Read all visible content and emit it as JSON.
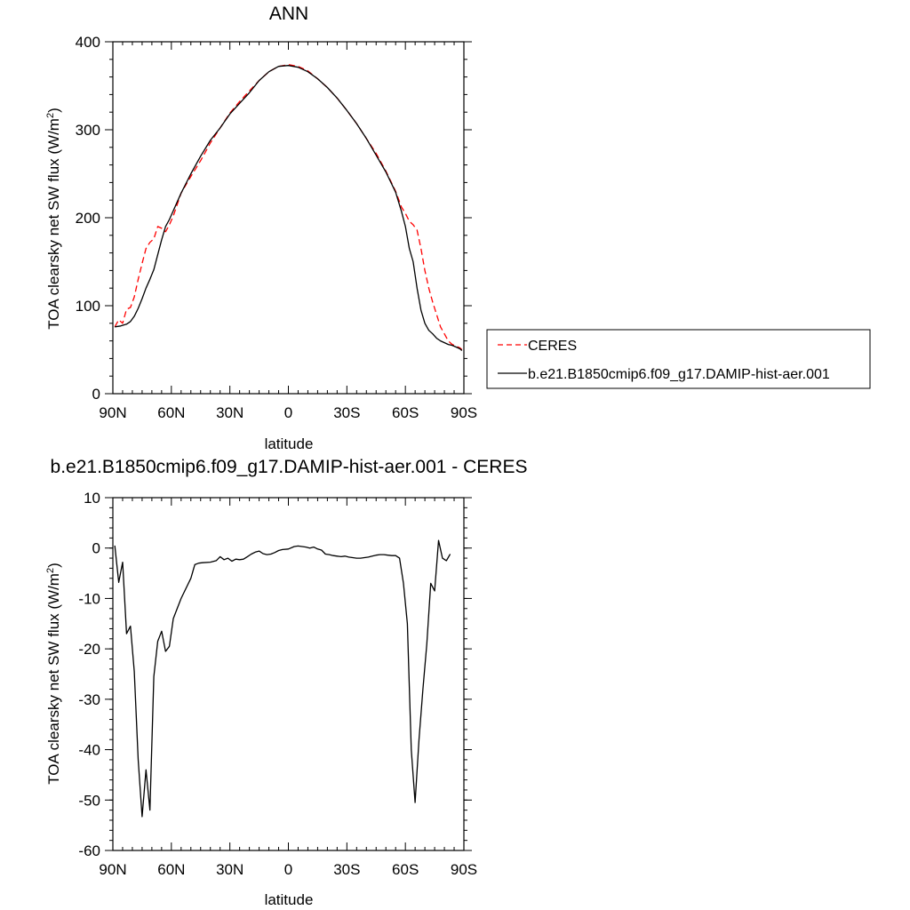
{
  "chart_data": [
    {
      "type": "line",
      "title": "ANN",
      "xlabel": "latitude",
      "ylabel": "TOA clearsky net SW flux (W/m",
      "ylabel_sup": "2",
      "ylabel_close": ")",
      "xlim": [
        90,
        -90
      ],
      "ylim": [
        0,
        400
      ],
      "x_ticks": [
        90,
        60,
        30,
        0,
        -30,
        -60,
        -90
      ],
      "x_tick_labels": [
        "90N",
        "60N",
        "30N",
        "0",
        "30S",
        "60S",
        "90S"
      ],
      "y_ticks": [
        0,
        100,
        200,
        300,
        400
      ],
      "y_tick_labels": [
        "0",
        "100",
        "200",
        "300",
        "400"
      ],
      "legend_placement": "right",
      "series": [
        {
          "name": "CERES",
          "color": "#ff0000",
          "dash": "dashed",
          "points": [
            [
              89,
              76
            ],
            [
              87,
              84
            ],
            [
              85,
              80
            ],
            [
              83,
              96
            ],
            [
              81,
              98
            ],
            [
              79,
              110
            ],
            [
              77,
              130
            ],
            [
              75,
              148
            ],
            [
              73,
              165
            ],
            [
              71,
              172
            ],
            [
              69,
              176
            ],
            [
              67,
              190
            ],
            [
              65,
              188
            ],
            [
              63,
              184
            ],
            [
              61,
              192
            ],
            [
              59,
              202
            ],
            [
              57,
              215
            ],
            [
              55,
              228
            ],
            [
              50,
              247
            ],
            [
              45,
              265
            ],
            [
              40,
              285
            ],
            [
              35,
              302
            ],
            [
              30,
              319
            ],
            [
              25,
              332
            ],
            [
              20,
              344
            ],
            [
              15,
              356
            ],
            [
              10,
              366
            ],
            [
              5,
              372
            ],
            [
              0,
              374
            ],
            [
              -5,
              372
            ],
            [
              -10,
              367
            ],
            [
              -15,
              358
            ],
            [
              -20,
              348
            ],
            [
              -25,
              336
            ],
            [
              -30,
              322
            ],
            [
              -35,
              307
            ],
            [
              -40,
              290
            ],
            [
              -45,
              273
            ],
            [
              -50,
              253
            ],
            [
              -55,
              230
            ],
            [
              -58,
              212
            ],
            [
              -60,
              205
            ],
            [
              -62,
              196
            ],
            [
              -64,
              192
            ],
            [
              -66,
              186
            ],
            [
              -68,
              165
            ],
            [
              -70,
              140
            ],
            [
              -72,
              120
            ],
            [
              -74,
              104
            ],
            [
              -76,
              90
            ],
            [
              -78,
              76
            ],
            [
              -80,
              68
            ],
            [
              -82,
              60
            ],
            [
              -84,
              56
            ],
            [
              -86,
              54
            ],
            [
              -88,
              52
            ],
            [
              -89,
              50
            ]
          ]
        },
        {
          "name": "b.e21.B1850cmip6.f09_g17.DAMIP-hist-aer.001",
          "color": "#000000",
          "dash": "solid",
          "points": [
            [
              89,
              76
            ],
            [
              86,
              77
            ],
            [
              83,
              79
            ],
            [
              81,
              82
            ],
            [
              79,
              88
            ],
            [
              77,
              97
            ],
            [
              75,
              108
            ],
            [
              73,
              120
            ],
            [
              71,
              130
            ],
            [
              69,
              141
            ],
            [
              67,
              158
            ],
            [
              65,
              175
            ],
            [
              63,
              190
            ],
            [
              61,
              198
            ],
            [
              59,
              208
            ],
            [
              57,
              218
            ],
            [
              55,
              228
            ],
            [
              50,
              250
            ],
            [
              45,
              270
            ],
            [
              40,
              288
            ],
            [
              35,
              302
            ],
            [
              30,
              318
            ],
            [
              25,
              330
            ],
            [
              20,
              342
            ],
            [
              15,
              356
            ],
            [
              10,
              366
            ],
            [
              5,
              372
            ],
            [
              0,
              373
            ],
            [
              -5,
              371
            ],
            [
              -10,
              366
            ],
            [
              -15,
              358
            ],
            [
              -20,
              348
            ],
            [
              -25,
              336
            ],
            [
              -30,
              322
            ],
            [
              -35,
              307
            ],
            [
              -40,
              290
            ],
            [
              -45,
              271
            ],
            [
              -50,
              252
            ],
            [
              -55,
              229
            ],
            [
              -58,
              207
            ],
            [
              -60,
              190
            ],
            [
              -62,
              165
            ],
            [
              -64,
              150
            ],
            [
              -66,
              120
            ],
            [
              -68,
              95
            ],
            [
              -70,
              80
            ],
            [
              -72,
              72
            ],
            [
              -74,
              68
            ],
            [
              -76,
              63
            ],
            [
              -78,
              60
            ],
            [
              -80,
              58
            ],
            [
              -82,
              56
            ],
            [
              -84,
              55
            ],
            [
              -86,
              53
            ],
            [
              -88,
              51
            ],
            [
              -89,
              49
            ]
          ]
        }
      ]
    },
    {
      "type": "line",
      "title": "b.e21.B1850cmip6.f09_g17.DAMIP-hist-aer.001 - CERES",
      "xlabel": "latitude",
      "ylabel": "TOA clearsky net SW flux (W/m",
      "ylabel_sup": "2",
      "ylabel_close": ")",
      "xlim": [
        90,
        -90
      ],
      "ylim": [
        -60,
        10
      ],
      "x_ticks": [
        90,
        60,
        30,
        0,
        -30,
        -60,
        -90
      ],
      "x_tick_labels": [
        "90N",
        "60N",
        "30N",
        "0",
        "30S",
        "60S",
        "90S"
      ],
      "y_ticks": [
        10,
        0,
        -10,
        -20,
        -30,
        -40,
        -50,
        -60
      ],
      "y_tick_labels": [
        "10",
        "0",
        "-10",
        "-20",
        "-30",
        "-40",
        "-50",
        "-60"
      ],
      "series": [
        {
          "color": "#000000",
          "dash": "solid",
          "points": [
            [
              89,
              0.5
            ],
            [
              87,
              -6.8
            ],
            [
              85,
              -2.8
            ],
            [
              83,
              -17
            ],
            [
              81,
              -15.5
            ],
            [
              79,
              -24.5
            ],
            [
              77,
              -42
            ],
            [
              75,
              -53.3
            ],
            [
              73,
              -44
            ],
            [
              71,
              -52
            ],
            [
              69,
              -25.5
            ],
            [
              67,
              -18.5
            ],
            [
              65,
              -16.5
            ],
            [
              63,
              -20.5
            ],
            [
              61,
              -19.5
            ],
            [
              59,
              -14
            ],
            [
              55,
              -10
            ],
            [
              50,
              -6
            ],
            [
              48,
              -3.3
            ],
            [
              46,
              -3
            ],
            [
              44,
              -2.9
            ],
            [
              40,
              -2.8
            ],
            [
              37,
              -2.5
            ],
            [
              35,
              -1.7
            ],
            [
              33,
              -2.3
            ],
            [
              31,
              -2
            ],
            [
              29,
              -2.6
            ],
            [
              27,
              -2.2
            ],
            [
              25,
              -2.3
            ],
            [
              23,
              -2.2
            ],
            [
              21,
              -1.7
            ],
            [
              19,
              -1.2
            ],
            [
              17,
              -0.8
            ],
            [
              15,
              -0.6
            ],
            [
              13,
              -1.1
            ],
            [
              11,
              -1.3
            ],
            [
              9,
              -1.2
            ],
            [
              7,
              -0.9
            ],
            [
              5,
              -0.5
            ],
            [
              3,
              -0.3
            ],
            [
              0,
              -0.2
            ],
            [
              -3,
              0.3
            ],
            [
              -5,
              0.4
            ],
            [
              -7,
              0.3
            ],
            [
              -9,
              0.2
            ],
            [
              -11,
              0
            ],
            [
              -13,
              0.2
            ],
            [
              -15,
              -0.2
            ],
            [
              -17,
              -0.4
            ],
            [
              -19,
              -1.2
            ],
            [
              -21,
              -1.3
            ],
            [
              -23,
              -1.5
            ],
            [
              -25,
              -1.6
            ],
            [
              -27,
              -1.7
            ],
            [
              -29,
              -1.6
            ],
            [
              -31,
              -1.8
            ],
            [
              -33,
              -1.9
            ],
            [
              -35,
              -2
            ],
            [
              -37,
              -2
            ],
            [
              -39,
              -1.9
            ],
            [
              -41,
              -1.8
            ],
            [
              -43,
              -1.6
            ],
            [
              -45,
              -1.4
            ],
            [
              -47,
              -1.3
            ],
            [
              -49,
              -1.3
            ],
            [
              -51,
              -1.4
            ],
            [
              -53,
              -1.5
            ],
            [
              -55,
              -1.5
            ],
            [
              -57,
              -2
            ],
            [
              -59,
              -7
            ],
            [
              -61,
              -15
            ],
            [
              -63,
              -40
            ],
            [
              -65,
              -50.5
            ],
            [
              -67,
              -38
            ],
            [
              -69,
              -28
            ],
            [
              -71,
              -19
            ],
            [
              -73,
              -7
            ],
            [
              -75,
              -8.5
            ],
            [
              -77,
              1.5
            ],
            [
              -79,
              -2
            ],
            [
              -81,
              -2.5
            ],
            [
              -83,
              -1.2
            ]
          ]
        }
      ]
    }
  ]
}
